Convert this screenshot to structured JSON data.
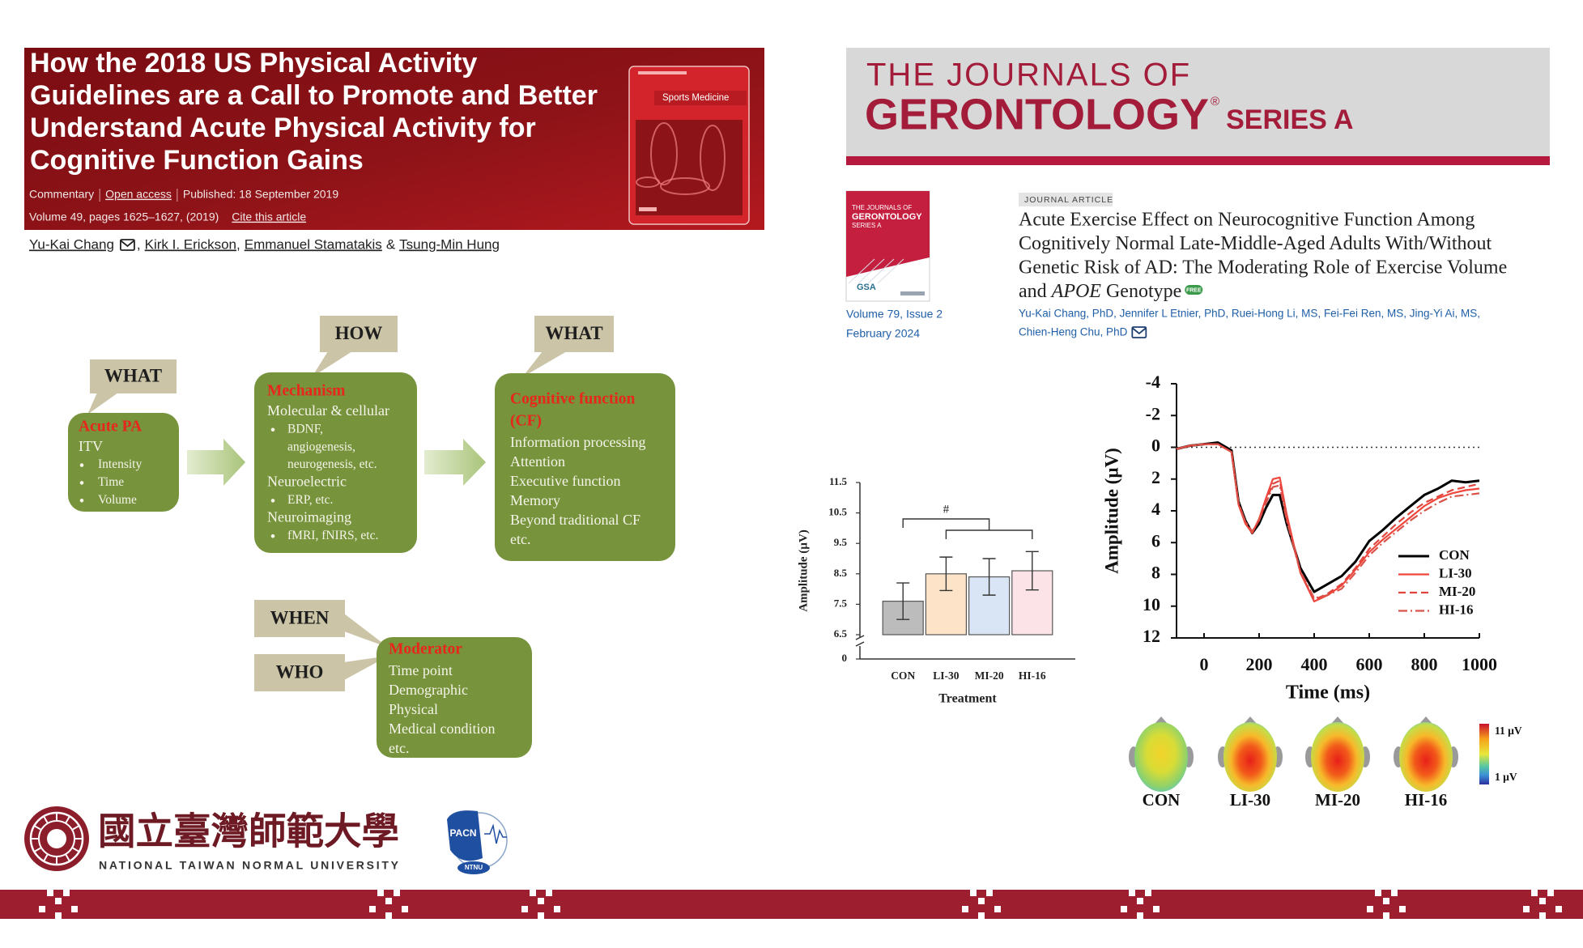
{
  "paper": {
    "title_lines": [
      "How the 2018 US Physical Activity",
      "Guidelines are a Call to Promote and Better",
      "Understand Acute Physical Activity for",
      "Cognitive Function Gains"
    ],
    "meta": [
      "Commentary",
      "Open access",
      "Published: 18 September 2019"
    ],
    "volume": "Volume 49, pages 1625–1627, (2019)",
    "cite": "Cite this article",
    "cover_title": "Sports Medicine",
    "authors": [
      "Yu-Kai Chang",
      "Kirk I. Erickson",
      "Emmanuel Stamatakis",
      "Tsung-Min Hung"
    ],
    "author_joins": [
      ",",
      ",",
      "&"
    ]
  },
  "journal": {
    "name_lines": [
      "THE JOURNALS OF",
      "GERONTOLOGY"
    ],
    "mark": "®",
    "series": "SERIES A",
    "cover_lines": [
      "THE JOURNALS OF",
      "GERONTOLOGY",
      "SERIES A"
    ],
    "cover_society": "GSA",
    "issue_lines": [
      "Volume 79, Issue 2",
      "February 2024"
    ],
    "badge": "JOURNAL ARTICLE",
    "title_lines": [
      "Acute Exercise Effect on Neurocognitive Function Among",
      "Cognitively Normal Late-Middle-Aged Adults With/Without",
      "Genetic Risk of AD: The Moderating Role of Exercise Volume"
    ],
    "title_last": [
      "and ",
      "APOE",
      " Genotype"
    ],
    "free": "FREE",
    "author_lines": [
      "Yu-Kai Chang, PhD, Jennifer L Etnier, PhD, Ruei-Hong Li, MS, Fei-Fei Ren, MS, Jing-Yi Ai, MS,",
      "Chien-Heng Chu, PhD"
    ]
  },
  "diagram": {
    "callouts": [
      "WHAT",
      "HOW",
      "WHAT",
      "WHEN",
      "WHO"
    ],
    "boxes": [
      {
        "heading": [
          "Acute PA"
        ],
        "items": [
          {
            "lines": [
              "ITV"
            ],
            "bullet": false
          },
          {
            "lines": [
              "Intensity"
            ],
            "bullet": true
          },
          {
            "lines": [
              "Time"
            ],
            "bullet": true
          },
          {
            "lines": [
              "Volume"
            ],
            "bullet": true
          }
        ]
      },
      {
        "heading": [
          "Mechanism"
        ],
        "items": [
          {
            "lines": [
              "Molecular & cellular"
            ],
            "bullet": false
          },
          {
            "lines": [
              "BDNF,",
              "angiogenesis,",
              "neurogenesis, etc."
            ],
            "bullet": true
          },
          {
            "lines": [
              "Neuroelectric"
            ],
            "bullet": false
          },
          {
            "lines": [
              "ERP, etc."
            ],
            "bullet": true
          },
          {
            "lines": [
              "Neuroimaging"
            ],
            "bullet": false
          },
          {
            "lines": [
              "fMRI, fNIRS, etc."
            ],
            "bullet": true
          }
        ]
      },
      {
        "heading": [
          "Cognitive function",
          "(CF)"
        ],
        "items": [
          {
            "lines": [
              "Information processing"
            ],
            "bullet": false
          },
          {
            "lines": [
              "Attention"
            ],
            "bullet": false
          },
          {
            "lines": [
              "Executive function"
            ],
            "bullet": false
          },
          {
            "lines": [
              "Memory"
            ],
            "bullet": false
          },
          {
            "lines": [
              "Beyond traditional CF"
            ],
            "bullet": false
          },
          {
            "lines": [
              "etc."
            ],
            "bullet": false
          }
        ]
      },
      {
        "heading": [
          "Moderator"
        ],
        "items": [
          {
            "lines": [
              "Time point"
            ],
            "bullet": false
          },
          {
            "lines": [
              "Demographic"
            ],
            "bullet": false
          },
          {
            "lines": [
              "Physical"
            ],
            "bullet": false
          },
          {
            "lines": [
              "Medical condition"
            ],
            "bullet": false
          },
          {
            "lines": [
              "etc."
            ],
            "bullet": false
          }
        ]
      }
    ]
  },
  "chart_data": [
    {
      "type": "bar",
      "xlabel": "Treatment",
      "ylabel": "Amplitude (µV)",
      "categories": [
        "CON",
        "LI-30",
        "MI-20",
        "HI-16"
      ],
      "values": [
        7.6,
        8.5,
        8.4,
        8.6
      ],
      "errors": [
        0.6,
        0.55,
        0.6,
        0.63
      ],
      "colors": [
        "#bcbcbc",
        "#fde4c8",
        "#d9e5f5",
        "#fbe3e7"
      ],
      "ylim": [
        0,
        11.5
      ],
      "y_break": [
        0,
        6.5
      ],
      "yticks": [
        0,
        6.5,
        7.5,
        8.5,
        9.5,
        10.5,
        11.5
      ],
      "annotation": "#"
    },
    {
      "type": "line",
      "xlabel": "Time (ms)",
      "ylabel": "Amplitude (µV)",
      "x": [
        -100,
        -50,
        0,
        50,
        100,
        125,
        150,
        175,
        200,
        225,
        250,
        275,
        300,
        350,
        400,
        450,
        500,
        550,
        600,
        650,
        700,
        750,
        800,
        850,
        900,
        950,
        1000
      ],
      "series": [
        {
          "name": "CON",
          "color": "#000000",
          "dash": "solid",
          "values": [
            0.1,
            -0.1,
            -0.2,
            -0.3,
            0.2,
            3.4,
            4.6,
            5.4,
            4.8,
            3.8,
            3.0,
            3.0,
            4.8,
            7.6,
            9.1,
            8.6,
            8.1,
            7.2,
            5.9,
            5.2,
            4.4,
            3.7,
            3.0,
            2.6,
            2.1,
            2.2,
            2.1
          ]
        },
        {
          "name": "LI-30",
          "color": "#f0463c",
          "dash": "solid",
          "values": [
            0.1,
            -0.1,
            -0.2,
            -0.2,
            0.3,
            3.6,
            4.8,
            5.4,
            4.5,
            3.2,
            2.0,
            1.9,
            4.2,
            7.9,
            9.7,
            9.3,
            8.7,
            7.7,
            6.6,
            5.8,
            5.1,
            4.4,
            3.7,
            3.2,
            2.9,
            2.7,
            2.6
          ]
        },
        {
          "name": "MI-20",
          "color": "#e0443c",
          "dash": "dashed",
          "values": [
            0.1,
            -0.1,
            -0.2,
            -0.2,
            0.3,
            3.5,
            4.7,
            5.3,
            4.6,
            3.4,
            2.3,
            2.1,
            4.5,
            7.9,
            9.6,
            9.2,
            8.6,
            7.6,
            6.4,
            5.6,
            4.8,
            4.1,
            3.5,
            3.1,
            2.7,
            2.5,
            2.3
          ]
        },
        {
          "name": "HI-16",
          "color": "#d9534a",
          "dash": "dashdot",
          "values": [
            0.1,
            -0.1,
            -0.2,
            -0.2,
            0.3,
            3.5,
            4.7,
            5.3,
            4.6,
            3.5,
            2.5,
            2.4,
            4.6,
            7.8,
            9.5,
            9.3,
            8.9,
            7.9,
            6.8,
            6.0,
            5.3,
            4.6,
            4.0,
            3.5,
            3.1,
            3.0,
            2.9
          ]
        }
      ],
      "xlim": [
        -100,
        1000
      ],
      "ylim": [
        12,
        -4
      ],
      "xticks": [
        0,
        200,
        400,
        600,
        800,
        1000
      ],
      "yticks": [
        -4,
        -2,
        0,
        2,
        4,
        6,
        8,
        10,
        12
      ],
      "zero_line": true,
      "legend": "lower right"
    }
  ],
  "topomaps": {
    "labels": [
      "CON",
      "LI-30",
      "MI-20",
      "HI-16"
    ],
    "colorbar_labels": [
      "11 µV",
      "1 µV"
    ]
  },
  "logo": {
    "chinese": "國立臺灣師範大學",
    "english": "NATIONAL TAIWAN NORMAL UNIVERSITY",
    "lab": "PACN",
    "lab_sub": "NTNU"
  }
}
